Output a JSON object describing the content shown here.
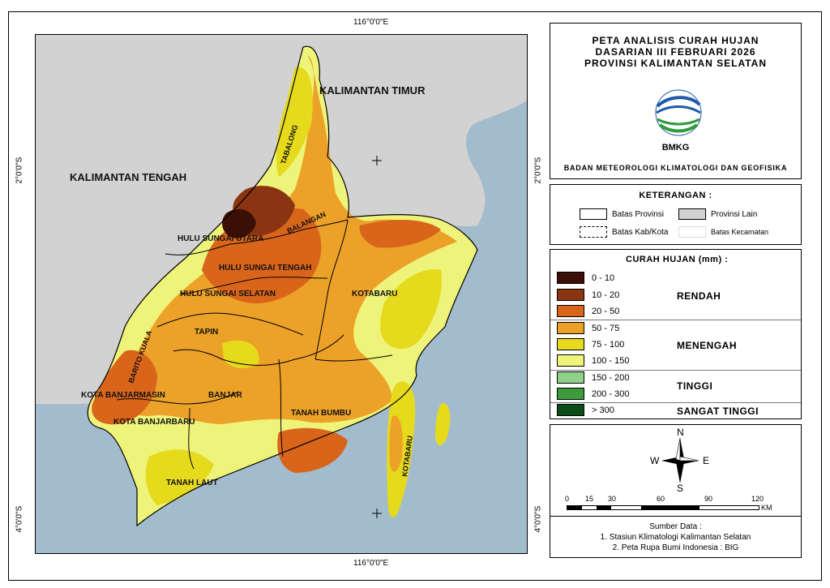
{
  "coords": {
    "top": "116°0'0\"E",
    "bottom": "116°0'0\"E",
    "left_upper": "2°0'0\"S",
    "left_lower": "4°0'0\"S",
    "right_upper": "2°0'0\"S",
    "right_lower": "4°0'0\"S"
  },
  "map": {
    "neighbor_labels": [
      "KALIMANTAN TIMUR",
      "KALIMANTAN TENGAH"
    ],
    "region_labels": [
      "TABALONG",
      "BALANGAN",
      "HULU SUNGAI UTARA",
      "HULU SUNGAI TENGAH",
      "HULU SUNGAI SELATAN",
      "KOTABARU",
      "TAPIN",
      "BARITO KUALA",
      "KOTA BANJARMASIN",
      "BANJAR",
      "KOTA BANJARBARU",
      "TANAH BUMBU",
      "TANAH LAUT",
      "KOTABARU"
    ]
  },
  "title": {
    "line1": "PETA ANALISIS CURAH HUJAN",
    "line2": "DASARIAN III FEBRUARI 2026",
    "line3": "PROVINSI KALIMANTAN SELATAN",
    "logo_text": "BMKG",
    "agency": "BADAN METEOROLOGI KLIMATOLOGI DAN GEOFISIKA"
  },
  "keterangan": {
    "title": "KETERANGAN :",
    "items": [
      "Batas Provinsi",
      "Provinsi Lain",
      "Batas Kab/Kota",
      "Batas Kecamatan"
    ]
  },
  "legend": {
    "title": "CURAH HUJAN (mm) :",
    "classes": [
      {
        "label": "0 - 10",
        "color": "#3b0f05"
      },
      {
        "label": "10 - 20",
        "color": "#8a3412"
      },
      {
        "label": "20 - 50",
        "color": "#d9651b"
      },
      {
        "label": "50 - 75",
        "color": "#eca128"
      },
      {
        "label": "75 - 100",
        "color": "#e6da1c"
      },
      {
        "label": "100 - 150",
        "color": "#eef37a"
      },
      {
        "label": "150 - 200",
        "color": "#8fd18b"
      },
      {
        "label": "200 - 300",
        "color": "#3d9a3d"
      },
      {
        "label": "> 300",
        "color": "#0b4d17"
      }
    ],
    "categories": [
      "RENDAH",
      "MENENGAH",
      "TINGGI",
      "SANGAT TINGGI"
    ]
  },
  "compass": {
    "n": "N",
    "s": "S",
    "e": "E",
    "w": "W"
  },
  "scale": {
    "ticks": [
      "0",
      "15",
      "30",
      "60",
      "90",
      "120"
    ],
    "unit": "KM"
  },
  "sumber": {
    "title": "Sumber Data :",
    "line1": "1. Stasiun Klimatologi Kalimantan Selatan",
    "line2": "2. Peta Rupa Bumi Indonesia : BIG"
  },
  "colors": {
    "sea": "#a3bccd",
    "other_province": "#d2d2d2",
    "border": "#000000"
  }
}
